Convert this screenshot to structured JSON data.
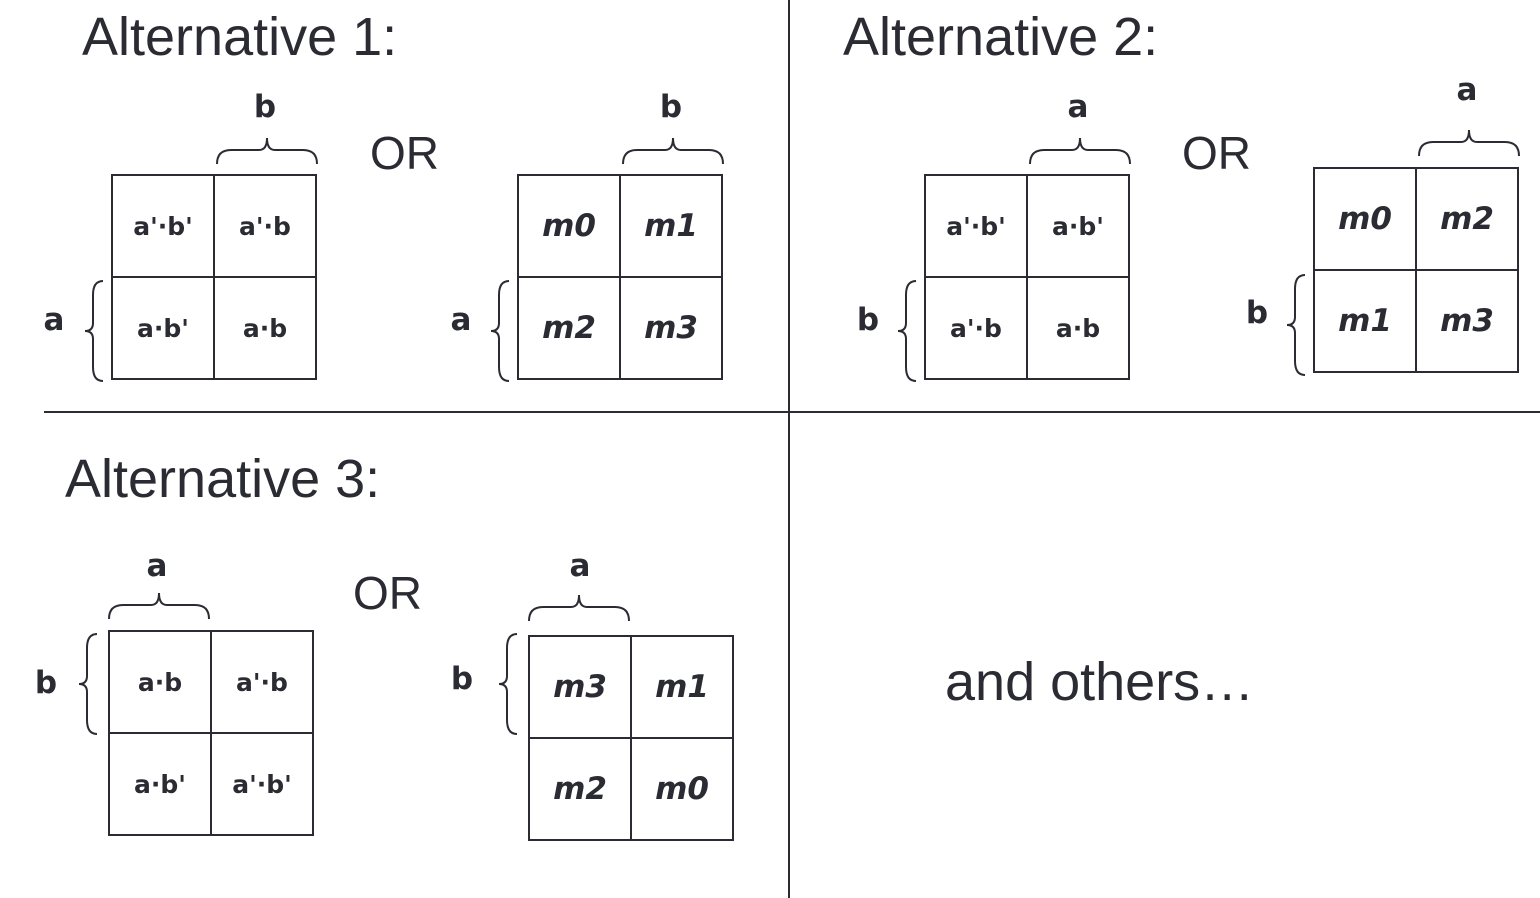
{
  "panels": [
    {
      "title": "Alternative 1:",
      "or_label": "OR",
      "maps": [
        {
          "type": "expression",
          "column_variable": "b",
          "row_variable": "a",
          "cells": [
            [
              "a'·b'",
              "a'·b"
            ],
            [
              "a·b'",
              "a·b"
            ]
          ]
        },
        {
          "type": "minterm",
          "column_variable": "b",
          "row_variable": "a",
          "cells": [
            [
              "m0",
              "m1"
            ],
            [
              "m2",
              "m3"
            ]
          ]
        }
      ]
    },
    {
      "title": "Alternative 2:",
      "or_label": "OR",
      "maps": [
        {
          "type": "expression",
          "column_variable": "a",
          "row_variable": "b",
          "cells": [
            [
              "a'·b'",
              "a·b'"
            ],
            [
              "a'·b",
              "a·b"
            ]
          ]
        },
        {
          "type": "minterm",
          "column_variable": "a",
          "row_variable": "b",
          "cells": [
            [
              "m0",
              "m2"
            ],
            [
              "m1",
              "m3"
            ]
          ]
        }
      ]
    },
    {
      "title": "Alternative 3:",
      "or_label": "OR",
      "maps": [
        {
          "type": "expression",
          "column_variable": "a",
          "row_variable": "b",
          "cells": [
            [
              "a·b",
              "a'·b"
            ],
            [
              "a·b'",
              "a'·b'"
            ]
          ]
        },
        {
          "type": "minterm",
          "column_variable": "a",
          "row_variable": "b",
          "cells": [
            [
              "m3",
              "m1"
            ],
            [
              "m2",
              "m0"
            ]
          ]
        }
      ]
    }
  ],
  "closing_text": "and others…"
}
